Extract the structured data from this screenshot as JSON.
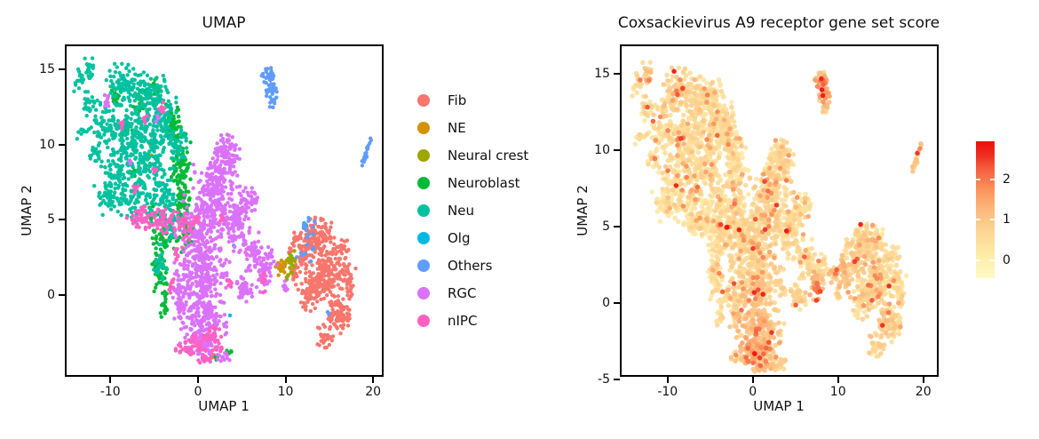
{
  "chart_data": [
    {
      "type": "scatter",
      "title": "UMAP",
      "xlabel": "UMAP 1",
      "ylabel": "UMAP 2",
      "xlim": [
        -15.2,
        21.2
      ],
      "ylim": [
        -5.45,
        16.65
      ],
      "xticks": [
        -10,
        0,
        10,
        20
      ],
      "yticks": [
        0,
        5,
        10,
        15
      ],
      "grid": false,
      "legend_position": "right-of-plot",
      "legend": [
        {
          "label": "Fib",
          "color": "#F8766D"
        },
        {
          "label": "NE",
          "color": "#D39200"
        },
        {
          "label": "Neural crest",
          "color": "#9CA700"
        },
        {
          "label": "Neuroblast",
          "color": "#00BA38"
        },
        {
          "label": "Neu",
          "color": "#00C19F"
        },
        {
          "label": "Olg",
          "color": "#00B9E3"
        },
        {
          "label": "Others",
          "color": "#619CFF"
        },
        {
          "label": "RGC",
          "color": "#DB72FB"
        },
        {
          "label": "nIPC",
          "color": "#FF61C3"
        }
      ],
      "clusters": [
        {
          "name": "Fib",
          "color": "#F8766D",
          "blobs": [
            [
              13.4,
              4.0,
              1.7,
              1.1,
              110
            ],
            [
              14.7,
              1.7,
              1.9,
              1.4,
              150
            ],
            [
              12.7,
              0.3,
              1.3,
              1.1,
              70
            ],
            [
              15.7,
              -1.2,
              1.4,
              1.1,
              85
            ],
            [
              14.3,
              -2.7,
              0.9,
              0.6,
              30
            ],
            [
              17.0,
              1.0,
              0.7,
              1.0,
              35
            ],
            [
              11.8,
              2.7,
              0.9,
              1.1,
              45
            ],
            [
              10.8,
              1.6,
              0.5,
              0.7,
              16
            ],
            [
              11.0,
              4.0,
              0.5,
              0.5,
              12
            ],
            [
              16.3,
              3.2,
              0.6,
              0.7,
              20
            ],
            [
              1.4,
              -4.0,
              0.4,
              0.25,
              6
            ],
            [
              10.3,
              3.1,
              0.3,
              0.3,
              6
            ]
          ]
        },
        {
          "name": "NE",
          "color": "#D39200",
          "blobs": [
            [
              9.35,
              2.0,
              0.5,
              0.5,
              24
            ],
            [
              8.7,
              2.05,
              0.12,
              0.12,
              1
            ],
            [
              -5.75,
              10.15,
              0.1,
              0.1,
              1
            ],
            [
              -5.6,
              9.4,
              0.1,
              0.1,
              1
            ]
          ]
        },
        {
          "name": "Neural crest",
          "color": "#9CA700",
          "blobs": [
            [
              10.45,
              2.35,
              0.45,
              0.65,
              26
            ],
            [
              10.05,
              1.35,
              0.25,
              0.2,
              5
            ]
          ]
        },
        {
          "name": "Neuroblast",
          "color": "#00BA38",
          "blobs": [
            [
              -3.0,
              11.3,
              0.9,
              1.3,
              55
            ],
            [
              -2.2,
              8.8,
              1.0,
              1.8,
              75
            ],
            [
              -2.0,
              6.3,
              0.9,
              1.3,
              55
            ],
            [
              -3.9,
              4.0,
              1.3,
              1.0,
              50
            ],
            [
              -4.6,
              1.6,
              0.8,
              1.4,
              40
            ],
            [
              -4.0,
              -0.6,
              0.5,
              0.8,
              15
            ],
            [
              -6.8,
              12.9,
              0.7,
              0.7,
              20
            ],
            [
              -8.4,
              11.0,
              0.6,
              0.6,
              12
            ],
            [
              -5.0,
              14.0,
              0.6,
              0.6,
              12
            ],
            [
              -9.6,
              13.2,
              0.5,
              0.5,
              10
            ],
            [
              -1.5,
              4.1,
              0.7,
              1.0,
              32
            ],
            [
              -7.6,
              8.2,
              0.5,
              0.5,
              10
            ],
            [
              -5.5,
              5.6,
              0.6,
              0.6,
              12
            ],
            [
              3.4,
              -3.7,
              0.3,
              0.25,
              5
            ],
            [
              2.0,
              -4.1,
              0.25,
              0.2,
              4
            ]
          ]
        },
        {
          "name": "Neu",
          "color": "#00C19F",
          "blobs": [
            [
              -12.6,
              15.2,
              0.7,
              0.8,
              22
            ],
            [
              -12.5,
              12.7,
              1.0,
              0.8,
              28
            ],
            [
              -13.4,
              10.9,
              0.6,
              0.5,
              10
            ],
            [
              -13.8,
              14.3,
              0.6,
              0.8,
              15
            ],
            [
              -8.7,
              14.1,
              1.7,
              1.2,
              95
            ],
            [
              -5.7,
              13.3,
              1.6,
              1.4,
              95
            ],
            [
              -10.7,
              11.3,
              1.7,
              1.2,
              75
            ],
            [
              -7.3,
              11.0,
              2.2,
              1.6,
              140
            ],
            [
              -4.3,
              11.9,
              1.4,
              1.6,
              85
            ],
            [
              -9.0,
              8.8,
              1.9,
              1.4,
              100
            ],
            [
              -5.5,
              8.9,
              1.9,
              1.6,
              110
            ],
            [
              -10.2,
              6.7,
              1.6,
              1.1,
              60
            ],
            [
              -7.0,
              6.3,
              1.7,
              1.2,
              75
            ],
            [
              -4.1,
              6.4,
              1.4,
              1.5,
              70
            ],
            [
              -3.2,
              4.7,
              0.9,
              1.0,
              30
            ],
            [
              -2.6,
              9.9,
              1.1,
              1.3,
              45
            ],
            [
              -4.6,
              2.2,
              0.7,
              1.2,
              25
            ],
            [
              -12.1,
              9.3,
              0.8,
              0.7,
              18
            ]
          ]
        },
        {
          "name": "Olg",
          "color": "#00B9E3",
          "blobs": [
            [
              12.0,
              4.85,
              0.3,
              0.22,
              4
            ],
            [
              3.4,
              -1.2,
              0.1,
              0.1,
              1
            ],
            [
              0.6,
              0.2,
              0.1,
              0.1,
              1
            ]
          ]
        },
        {
          "name": "Others",
          "color": "#619CFF",
          "blobs": [
            [
              8.0,
              14.7,
              0.8,
              0.55,
              26
            ],
            [
              8.1,
              13.8,
              0.6,
              0.6,
              22
            ],
            [
              8.3,
              12.9,
              0.4,
              0.5,
              12
            ],
            [
              19.0,
              9.6,
              0.22,
              0.8,
              22,
              0.5
            ],
            [
              12.2,
              4.7,
              1.2,
              0.5,
              13
            ],
            [
              12.0,
              3.0,
              0.9,
              0.8,
              9
            ],
            [
              14.8,
              -1.1,
              0.2,
              0.2,
              2
            ],
            [
              3.9,
              3.4,
              0.12,
              0.12,
              1
            ]
          ]
        },
        {
          "name": "RGC",
          "color": "#DB72FB",
          "blobs": [
            [
              3.0,
              9.6,
              1.5,
              1.2,
              90
            ],
            [
              1.8,
              7.6,
              2.2,
              1.4,
              140
            ],
            [
              1.0,
              5.5,
              2.5,
              1.4,
              150
            ],
            [
              0.3,
              3.2,
              2.7,
              1.5,
              170
            ],
            [
              0.1,
              0.9,
              2.6,
              1.5,
              170
            ],
            [
              0.4,
              -1.5,
              2.3,
              1.4,
              150
            ],
            [
              0.2,
              -3.2,
              1.6,
              0.9,
              80
            ],
            [
              4.4,
              4.6,
              1.4,
              1.6,
              100
            ],
            [
              5.5,
              6.3,
              1.0,
              0.9,
              45
            ],
            [
              6.0,
              3.0,
              1.0,
              1.1,
              50
            ],
            [
              7.3,
              1.8,
              0.7,
              1.3,
              45
            ],
            [
              8.2,
              2.6,
              0.5,
              0.6,
              15
            ],
            [
              5.0,
              0.7,
              1.0,
              0.9,
              45
            ],
            [
              -2.3,
              0.0,
              0.9,
              1.5,
              50
            ],
            [
              9.85,
              0.7,
              0.4,
              0.35,
              10
            ],
            [
              2.6,
              -4.0,
              0.8,
              0.35,
              12
            ],
            [
              -10.6,
              13.0,
              0.35,
              0.6,
              9
            ],
            [
              -4.8,
              11.7,
              0.2,
              0.3,
              4
            ],
            [
              -7.9,
              9.0,
              0.2,
              0.2,
              3
            ]
          ]
        },
        {
          "name": "nIPC",
          "color": "#FF61C3",
          "blobs": [
            [
              -6.6,
              5.3,
              1.5,
              0.6,
              40
            ],
            [
              -4.0,
              5.0,
              1.9,
              0.7,
              60
            ],
            [
              -1.7,
              4.7,
              1.0,
              0.8,
              32
            ],
            [
              -0.4,
              5.2,
              0.6,
              0.5,
              14
            ],
            [
              -0.9,
              -3.4,
              1.6,
              0.7,
              45
            ],
            [
              1.4,
              -2.6,
              1.0,
              0.6,
              25
            ],
            [
              0.7,
              -4.2,
              0.9,
              0.35,
              14
            ],
            [
              2.2,
              -3.4,
              0.6,
              0.4,
              10
            ],
            [
              -8.9,
              11.3,
              0.3,
              0.4,
              6
            ],
            [
              -7.4,
              7.1,
              0.4,
              0.4,
              8
            ],
            [
              -5.1,
              8.4,
              0.3,
              0.3,
              5
            ],
            [
              -4.4,
              12.6,
              0.35,
              0.5,
              8
            ],
            [
              -2.6,
              2.9,
              0.5,
              0.6,
              12
            ],
            [
              -3.3,
              0.8,
              0.4,
              0.6,
              10
            ],
            [
              3.6,
              0.9,
              0.4,
              0.4,
              7
            ],
            [
              2.7,
              5.2,
              0.5,
              0.4,
              8
            ],
            [
              7.3,
              0.9,
              0.35,
              0.55,
              9
            ],
            [
              -6.2,
              11.9,
              0.25,
              0.3,
              5
            ]
          ]
        }
      ]
    },
    {
      "type": "scatter",
      "title": "Coxsackievirus A9 receptor gene set score",
      "xlabel": "UMAP 1",
      "ylabel": "UMAP 2",
      "xlim": [
        -15.6,
        21.8
      ],
      "ylim": [
        -4.85,
        16.9
      ],
      "xticks": [
        -10,
        0,
        10,
        20
      ],
      "yticks": [
        -5,
        0,
        5,
        10,
        15
      ],
      "grid": false,
      "points": "same embedding as left panel, colored by score",
      "colorbar": {
        "ticks": [
          0,
          1,
          2
        ],
        "range": [
          -0.45,
          2.95
        ],
        "stops": [
          {
            "t": 0.0,
            "color": "#FFF9C6"
          },
          {
            "t": 0.14,
            "color": "#FEEFAC"
          },
          {
            "t": 0.32,
            "color": "#FDD995"
          },
          {
            "t": 0.5,
            "color": "#FCB87C"
          },
          {
            "t": 0.65,
            "color": "#FB925C"
          },
          {
            "t": 0.8,
            "color": "#F65E3E"
          },
          {
            "t": 0.9,
            "color": "#ED2E1E"
          },
          {
            "t": 1.0,
            "color": "#F00D0C"
          }
        ]
      },
      "score_model": {
        "base": [
          0.1,
          0.72
        ],
        "hotspots": [
          [
            8.0,
            14.2,
            1.1,
            1.5
          ],
          [
            7.2,
            0.8,
            0.75,
            1.5
          ],
          [
            9.9,
            2.1,
            1.1,
            0.8
          ],
          [
            0.0,
            -3.1,
            2.2,
            0.75
          ],
          [
            0.8,
            0.6,
            3.0,
            0.4
          ],
          [
            2.3,
            7.0,
            2.5,
            0.25
          ],
          [
            14.6,
            -0.8,
            2.2,
            0.5
          ],
          [
            13.0,
            4.3,
            1.6,
            0.4
          ],
          [
            -12.4,
            15.0,
            1.3,
            0.55
          ],
          [
            -8.8,
            14.3,
            1.6,
            0.4
          ],
          [
            19.0,
            9.6,
            1.1,
            0.5
          ],
          [
            -6.5,
            10.5,
            4.5,
            0.15
          ],
          [
            5.0,
            9.8,
            1.5,
            0.3
          ]
        ],
        "max_point": {
          "x": 7.9,
          "y": 14.05,
          "score": 2.92
        }
      }
    }
  ]
}
